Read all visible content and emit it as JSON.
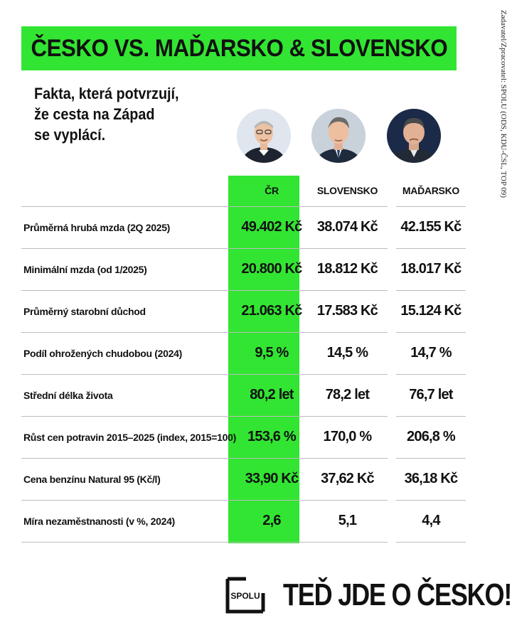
{
  "header": {
    "title": "ČESKO VS. MAĎARSKO & SLOVENSKO",
    "subtitle_lines": [
      "Fakta, která potvrzují,",
      "že cesta na Západ",
      "se vyplácí."
    ],
    "side_note": "Zadavatel/Zpracovatel: SPOLU (ODS, KDU-ČSL, TOP 09)"
  },
  "portraits": [
    {
      "country": "ČR",
      "icon": "portrait-cz-icon"
    },
    {
      "country": "SLOVENSKO",
      "icon": "portrait-sk-icon"
    },
    {
      "country": "MAĎARSKO",
      "icon": "portrait-hu-icon"
    }
  ],
  "table": {
    "columns": [
      "ČR",
      "SLOVENSKO",
      "MAĎARSKO"
    ],
    "rows": [
      {
        "label": "Průměrná hrubá mzda (2Q 2025)",
        "cz": "49.402 Kč",
        "sk": "38.074 Kč",
        "hu": "42.155 Kč"
      },
      {
        "label": "Minimální mzda (od 1/2025)",
        "cz": "20.800 Kč",
        "sk": "18.812 Kč",
        "hu": "18.017 Kč"
      },
      {
        "label": "Průměrný starobní důchod",
        "cz": "21.063 Kč",
        "sk": "17.583 Kč",
        "hu": "15.124 Kč"
      },
      {
        "label": "Podíl ohrožených chudobou (2024)",
        "cz": "9,5 %",
        "sk": "14,5 %",
        "hu": "14,7 %"
      },
      {
        "label": "Střední délka života",
        "cz": "80,2 let",
        "sk": "78,2 let",
        "hu": "76,7 let"
      },
      {
        "label": "Růst cen potravin 2015–2025 (index, 2015=100)",
        "cz": "153,6 %",
        "sk": "170,0 %",
        "hu": "206,8 %"
      },
      {
        "label": "Cena benzínu Natural 95 (Kč/l)",
        "cz": "33,90 Kč",
        "sk": "37,62 Kč",
        "hu": "36,18 Kč"
      },
      {
        "label": "Míra nezaměstnanosti (v %, 2024)",
        "cz": "2,6",
        "sk": "5,1",
        "hu": "4,4"
      }
    ]
  },
  "footer": {
    "logo_text": "SPOLU",
    "slogan": "TEĎ JDE O ČESKO!"
  },
  "colors": {
    "accent_green": "#32e532",
    "text": "#111111",
    "rule": "#bcbcbc"
  }
}
